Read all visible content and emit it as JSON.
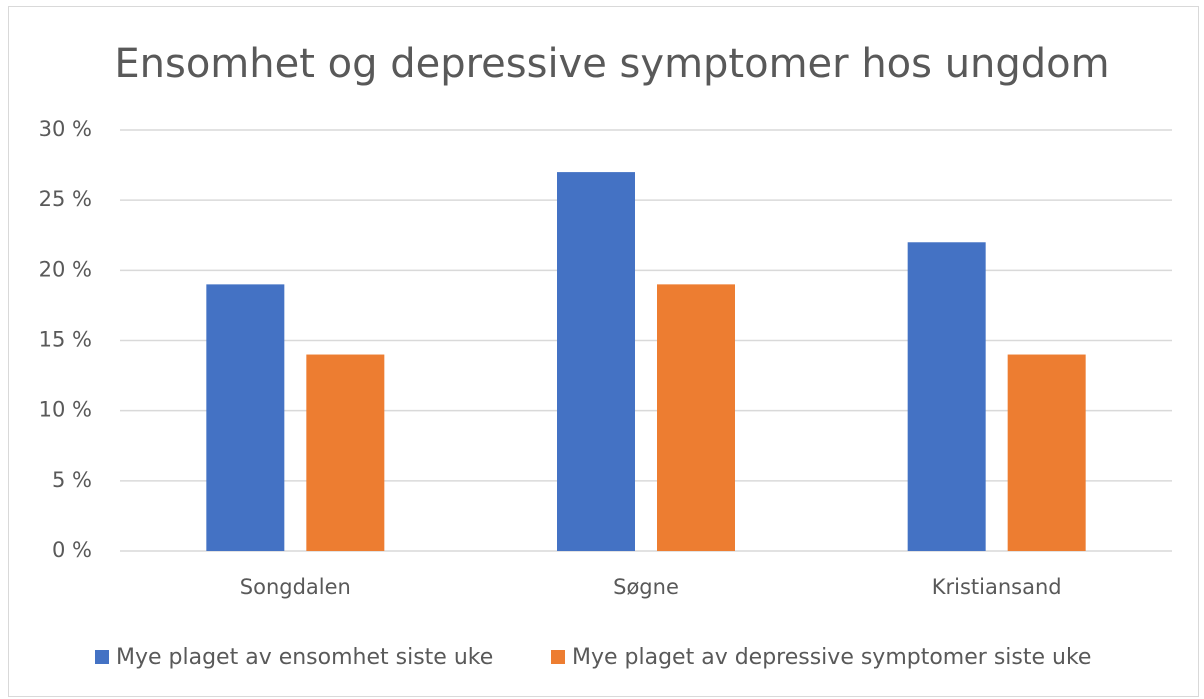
{
  "chart_data": {
    "type": "bar",
    "title": "Ensomhet og depressive symptomer hos ungdom",
    "categories": [
      "Songdalen",
      "Søgne",
      "Kristiansand"
    ],
    "series": [
      {
        "name": "Mye plaget av ensomhet siste uke",
        "color": "#4472c4",
        "values": [
          19,
          27,
          22
        ]
      },
      {
        "name": "Mye plaget av depressive symptomer siste uke",
        "color": "#ed7d31",
        "values": [
          14,
          19,
          14
        ]
      }
    ],
    "ylim": [
      0,
      30
    ],
    "yticks": [
      {
        "value": 0,
        "label": "0 %"
      },
      {
        "value": 5,
        "label": "5 %"
      },
      {
        "value": 10,
        "label": "10 %"
      },
      {
        "value": 15,
        "label": "15 %"
      },
      {
        "value": 20,
        "label": "20 %"
      },
      {
        "value": 25,
        "label": "25 %"
      },
      {
        "value": 30,
        "label": "30 %"
      }
    ],
    "grid": true,
    "legend": "bottom"
  }
}
